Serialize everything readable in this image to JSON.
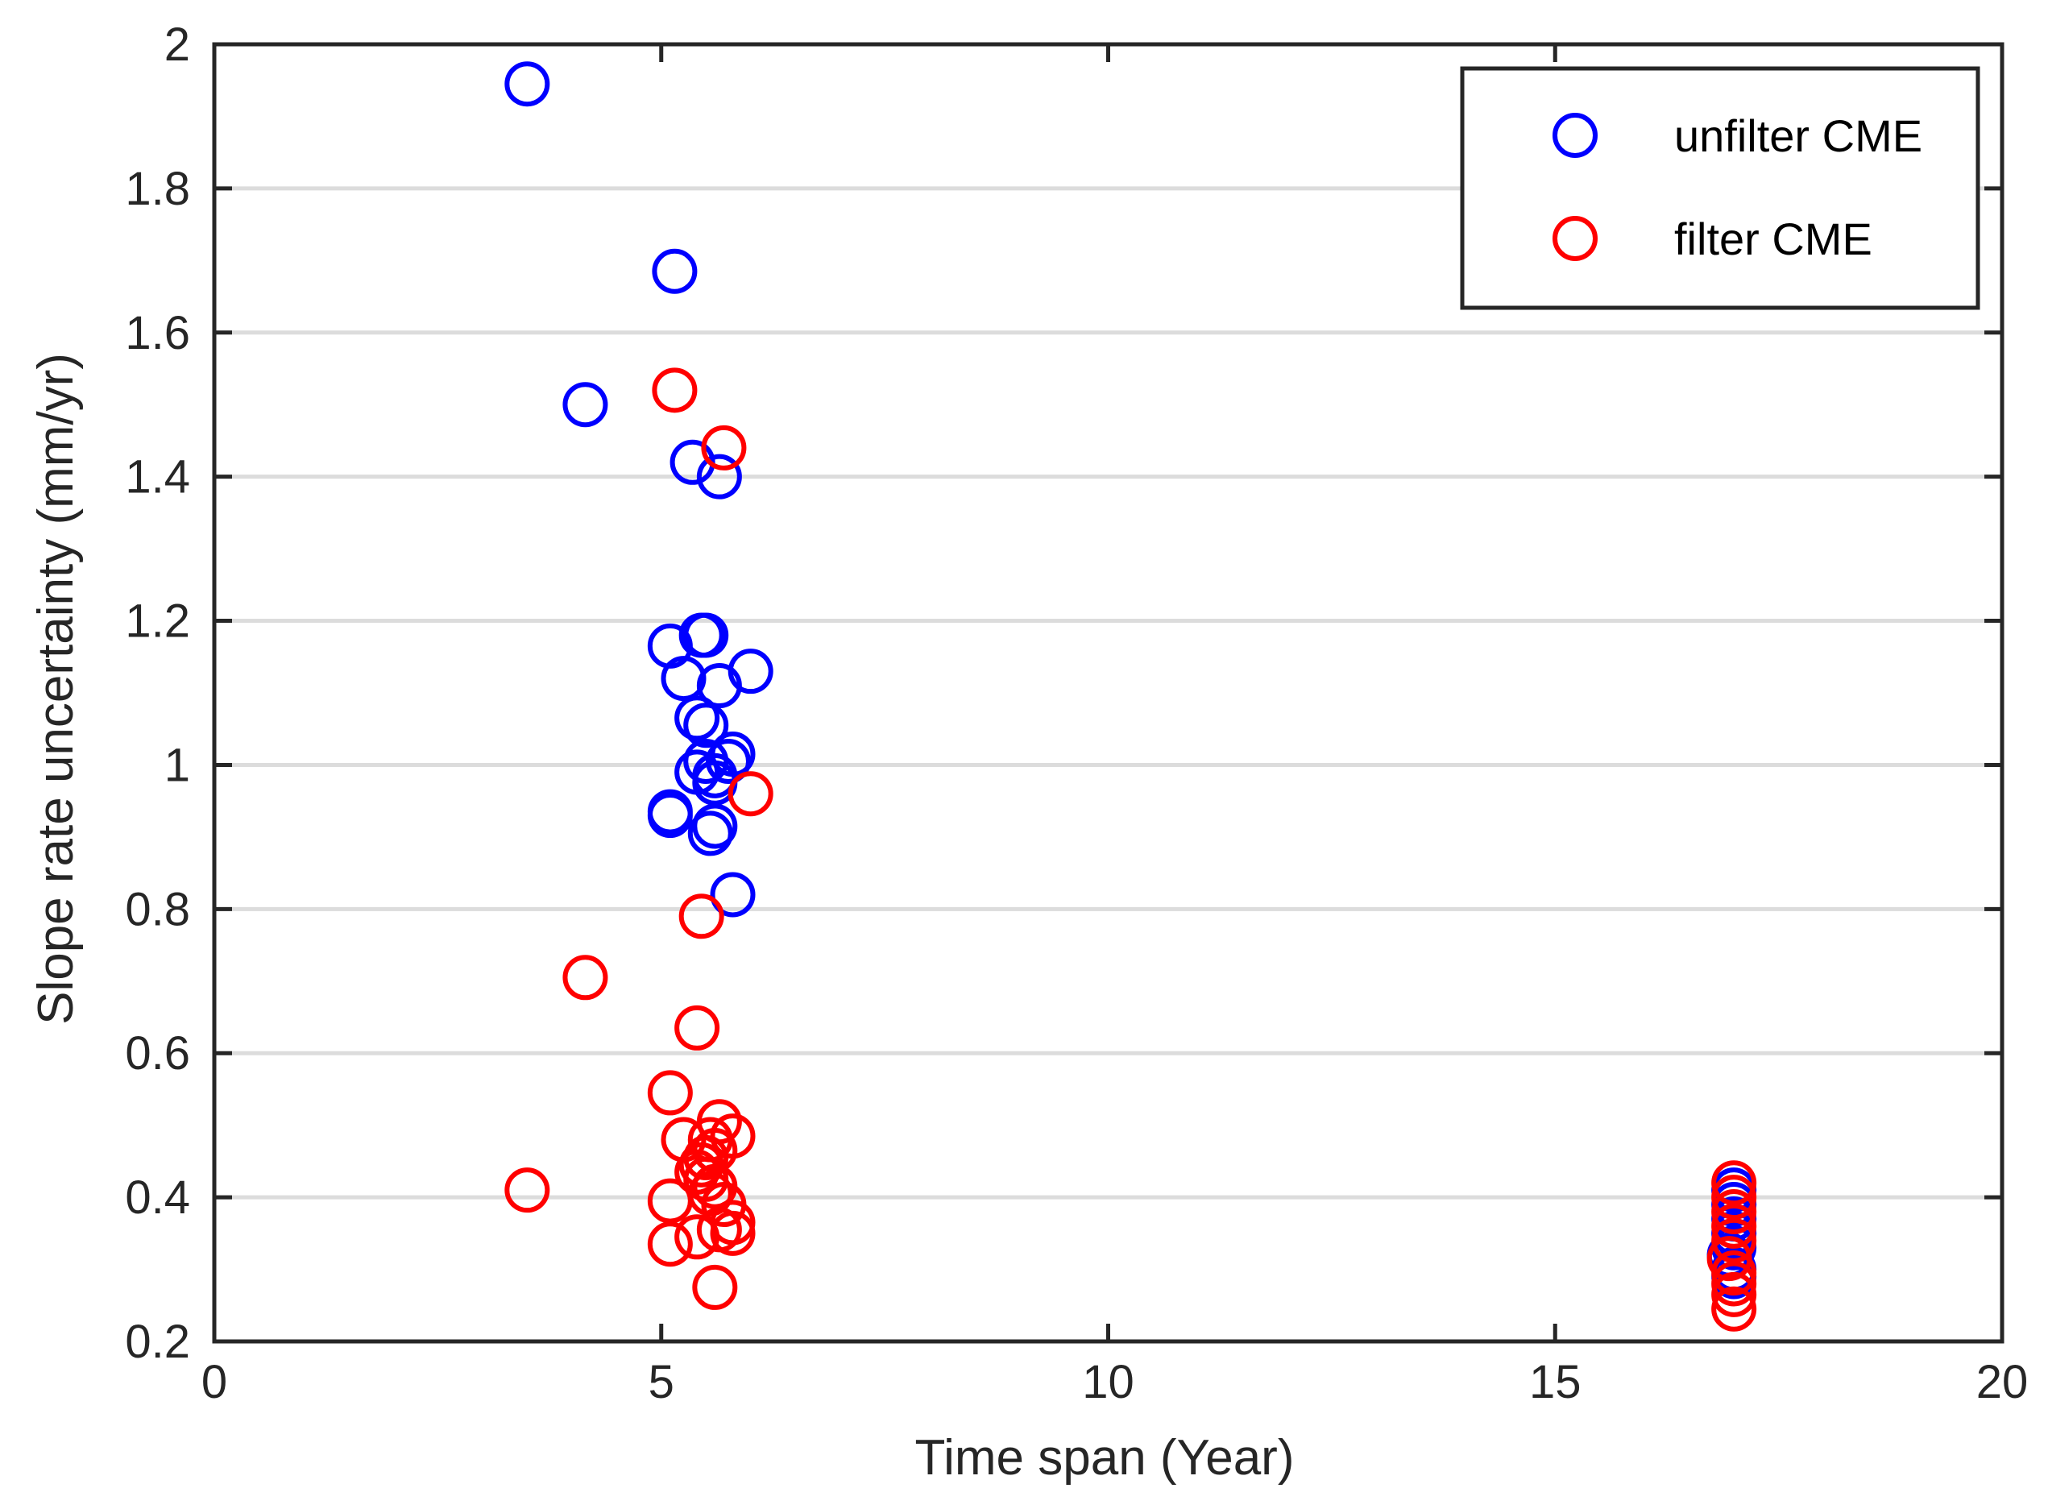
{
  "chart_data": {
    "type": "scatter",
    "title": "",
    "xlabel": "Time span (Year)",
    "ylabel": "Slope rate uncertainty (mm/yr)",
    "xlim": [
      0,
      20
    ],
    "ylim": [
      0.2,
      2
    ],
    "xticks": [
      0,
      5,
      10,
      15,
      20
    ],
    "xtick_labels": [
      "0",
      "5",
      "10",
      "15",
      "20"
    ],
    "yticks": [
      0.2,
      0.4,
      0.6,
      0.8,
      1.0,
      1.2,
      1.4,
      1.6,
      1.8,
      2.0
    ],
    "ytick_labels": [
      "0.2",
      "0.4",
      "0.6",
      "0.8",
      "1",
      "1.2",
      "1.4",
      "1.6",
      "1.8",
      "2"
    ],
    "grid": "horizontal",
    "legend_position": "top-right",
    "series": [
      {
        "name": "unfilter CME",
        "color": "#0000ff",
        "marker": "circle-open",
        "points": [
          [
            3.5,
            1.945
          ],
          [
            5.15,
            1.685
          ],
          [
            4.15,
            1.5
          ],
          [
            5.35,
            1.42
          ],
          [
            5.65,
            1.4
          ],
          [
            5.5,
            1.18
          ],
          [
            5.45,
            1.18
          ],
          [
            5.1,
            1.165
          ],
          [
            6.0,
            1.13
          ],
          [
            5.25,
            1.12
          ],
          [
            5.65,
            1.11
          ],
          [
            5.4,
            1.065
          ],
          [
            5.5,
            1.055
          ],
          [
            5.8,
            1.015
          ],
          [
            5.75,
            1.005
          ],
          [
            5.5,
            1.005
          ],
          [
            5.4,
            0.99
          ],
          [
            5.6,
            0.985
          ],
          [
            5.6,
            0.975
          ],
          [
            5.1,
            0.935
          ],
          [
            5.1,
            0.93
          ],
          [
            5.6,
            0.915
          ],
          [
            5.55,
            0.905
          ],
          [
            5.8,
            0.82
          ],
          [
            17.0,
            0.41
          ],
          [
            17.0,
            0.39
          ],
          [
            17.0,
            0.37
          ],
          [
            17.0,
            0.35
          ],
          [
            17.0,
            0.33
          ],
          [
            16.95,
            0.32
          ],
          [
            17.0,
            0.3
          ],
          [
            17.0,
            0.29
          ]
        ]
      },
      {
        "name": "filter CME",
        "color": "#ff0000",
        "marker": "circle-open",
        "points": [
          [
            5.15,
            1.52
          ],
          [
            5.7,
            1.44
          ],
          [
            6.0,
            0.96
          ],
          [
            5.45,
            0.79
          ],
          [
            4.15,
            0.705
          ],
          [
            5.4,
            0.635
          ],
          [
            5.1,
            0.545
          ],
          [
            5.65,
            0.505
          ],
          [
            5.8,
            0.485
          ],
          [
            5.55,
            0.48
          ],
          [
            5.25,
            0.48
          ],
          [
            5.6,
            0.465
          ],
          [
            5.5,
            0.455
          ],
          [
            5.45,
            0.445
          ],
          [
            5.4,
            0.435
          ],
          [
            5.5,
            0.425
          ],
          [
            5.6,
            0.415
          ],
          [
            3.5,
            0.41
          ],
          [
            5.55,
            0.405
          ],
          [
            5.1,
            0.395
          ],
          [
            5.7,
            0.39
          ],
          [
            5.8,
            0.365
          ],
          [
            5.65,
            0.355
          ],
          [
            5.8,
            0.35
          ],
          [
            5.4,
            0.345
          ],
          [
            5.1,
            0.335
          ],
          [
            5.6,
            0.275
          ],
          [
            17.0,
            0.42
          ],
          [
            17.0,
            0.4
          ],
          [
            17.0,
            0.38
          ],
          [
            17.0,
            0.36
          ],
          [
            17.0,
            0.34
          ],
          [
            16.95,
            0.315
          ],
          [
            17.0,
            0.295
          ],
          [
            17.0,
            0.28
          ],
          [
            17.0,
            0.265
          ],
          [
            17.0,
            0.245
          ]
        ]
      }
    ]
  }
}
